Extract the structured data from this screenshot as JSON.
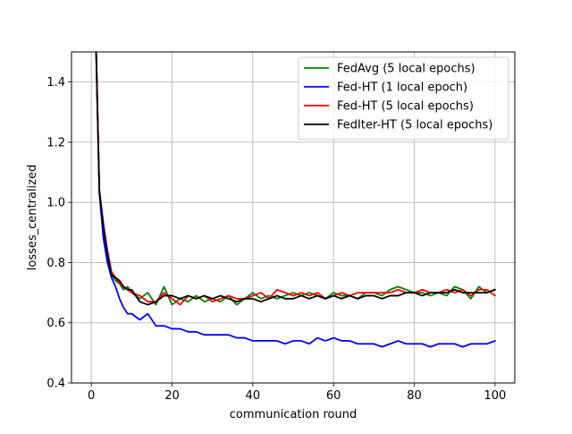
{
  "chart_data": {
    "type": "line",
    "xlabel": "communication round",
    "ylabel": "losses_centralized",
    "xlim": [
      -4.9,
      104.9
    ],
    "ylim": [
      0.4,
      1.5
    ],
    "xticks": [
      0,
      20,
      40,
      60,
      80,
      100
    ],
    "yticks": [
      0.4,
      0.6,
      0.8,
      1.0,
      1.2,
      1.4
    ],
    "xtick_labels": [
      "0",
      "20",
      "40",
      "60",
      "80",
      "100"
    ],
    "ytick_labels": [
      "0.4",
      "0.6",
      "0.8",
      "1.0",
      "1.2",
      "1.4"
    ],
    "grid": true,
    "legend_position": "top-right",
    "series": [
      {
        "name": "FedAvg (5 local epochs)",
        "color": "#008000",
        "x": [
          1,
          2,
          3,
          4,
          5,
          6,
          7,
          8,
          9,
          10,
          12,
          14,
          16,
          18,
          20,
          22,
          24,
          26,
          28,
          30,
          32,
          34,
          36,
          38,
          40,
          42,
          44,
          46,
          48,
          50,
          52,
          54,
          56,
          58,
          60,
          62,
          64,
          66,
          68,
          70,
          72,
          74,
          76,
          78,
          80,
          82,
          84,
          86,
          88,
          90,
          92,
          94,
          96,
          98,
          100
        ],
        "y": [
          1.62,
          1.04,
          0.92,
          0.82,
          0.76,
          0.74,
          0.73,
          0.71,
          0.72,
          0.7,
          0.68,
          0.7,
          0.66,
          0.72,
          0.66,
          0.68,
          0.67,
          0.69,
          0.67,
          0.68,
          0.67,
          0.69,
          0.66,
          0.68,
          0.7,
          0.68,
          0.69,
          0.68,
          0.69,
          0.7,
          0.69,
          0.7,
          0.69,
          0.68,
          0.7,
          0.69,
          0.69,
          0.68,
          0.7,
          0.7,
          0.69,
          0.71,
          0.72,
          0.71,
          0.7,
          0.7,
          0.69,
          0.7,
          0.69,
          0.72,
          0.71,
          0.68,
          0.72,
          0.7,
          0.71
        ]
      },
      {
        "name": "Fed-HT (1 local epoch)",
        "color": "#0000ff",
        "x": [
          1,
          2,
          3,
          4,
          5,
          6,
          7,
          8,
          9,
          10,
          12,
          14,
          16,
          18,
          20,
          22,
          24,
          26,
          28,
          30,
          32,
          34,
          36,
          38,
          40,
          42,
          44,
          46,
          48,
          50,
          52,
          54,
          56,
          58,
          60,
          62,
          64,
          66,
          68,
          70,
          72,
          74,
          76,
          78,
          80,
          82,
          84,
          86,
          88,
          90,
          92,
          94,
          96,
          98,
          100
        ],
        "y": [
          1.62,
          1.03,
          0.88,
          0.8,
          0.75,
          0.72,
          0.68,
          0.65,
          0.63,
          0.63,
          0.61,
          0.63,
          0.59,
          0.59,
          0.58,
          0.58,
          0.57,
          0.57,
          0.56,
          0.56,
          0.56,
          0.56,
          0.55,
          0.55,
          0.54,
          0.54,
          0.54,
          0.54,
          0.53,
          0.54,
          0.54,
          0.53,
          0.55,
          0.54,
          0.55,
          0.54,
          0.54,
          0.53,
          0.53,
          0.53,
          0.52,
          0.53,
          0.54,
          0.53,
          0.53,
          0.53,
          0.52,
          0.53,
          0.53,
          0.53,
          0.52,
          0.53,
          0.53,
          0.53,
          0.54
        ]
      },
      {
        "name": "Fed-HT (5 local epochs)",
        "color": "#ff0000",
        "x": [
          1,
          2,
          3,
          4,
          5,
          6,
          7,
          8,
          9,
          10,
          12,
          14,
          16,
          18,
          20,
          22,
          24,
          26,
          28,
          30,
          32,
          34,
          36,
          38,
          40,
          42,
          44,
          46,
          48,
          50,
          52,
          54,
          56,
          58,
          60,
          62,
          64,
          66,
          68,
          70,
          72,
          74,
          76,
          78,
          80,
          82,
          84,
          86,
          88,
          90,
          92,
          94,
          96,
          98,
          100
        ],
        "y": [
          1.62,
          1.04,
          0.93,
          0.84,
          0.77,
          0.75,
          0.73,
          0.72,
          0.71,
          0.7,
          0.69,
          0.67,
          0.67,
          0.7,
          0.68,
          0.66,
          0.69,
          0.68,
          0.69,
          0.67,
          0.68,
          0.69,
          0.68,
          0.68,
          0.69,
          0.7,
          0.68,
          0.71,
          0.7,
          0.69,
          0.7,
          0.69,
          0.7,
          0.68,
          0.69,
          0.7,
          0.69,
          0.7,
          0.7,
          0.7,
          0.7,
          0.7,
          0.71,
          0.7,
          0.7,
          0.71,
          0.7,
          0.7,
          0.71,
          0.7,
          0.71,
          0.69,
          0.71,
          0.71,
          0.69
        ]
      },
      {
        "name": "FedIter-HT (5 local epochs)",
        "color": "#000000",
        "x": [
          1,
          2,
          3,
          4,
          5,
          6,
          7,
          8,
          9,
          10,
          12,
          14,
          16,
          18,
          20,
          22,
          24,
          26,
          28,
          30,
          32,
          34,
          36,
          38,
          40,
          42,
          44,
          46,
          48,
          50,
          52,
          54,
          56,
          58,
          60,
          62,
          64,
          66,
          68,
          70,
          72,
          74,
          76,
          78,
          80,
          82,
          84,
          86,
          88,
          90,
          92,
          94,
          96,
          98,
          100
        ],
        "y": [
          1.62,
          1.04,
          0.92,
          0.83,
          0.76,
          0.75,
          0.74,
          0.72,
          0.71,
          0.71,
          0.67,
          0.66,
          0.67,
          0.69,
          0.69,
          0.68,
          0.69,
          0.68,
          0.69,
          0.68,
          0.69,
          0.68,
          0.67,
          0.68,
          0.68,
          0.67,
          0.68,
          0.69,
          0.68,
          0.68,
          0.69,
          0.68,
          0.69,
          0.68,
          0.69,
          0.68,
          0.69,
          0.68,
          0.69,
          0.69,
          0.68,
          0.69,
          0.69,
          0.7,
          0.7,
          0.69,
          0.7,
          0.7,
          0.7,
          0.71,
          0.7,
          0.7,
          0.7,
          0.7,
          0.71
        ]
      }
    ]
  }
}
